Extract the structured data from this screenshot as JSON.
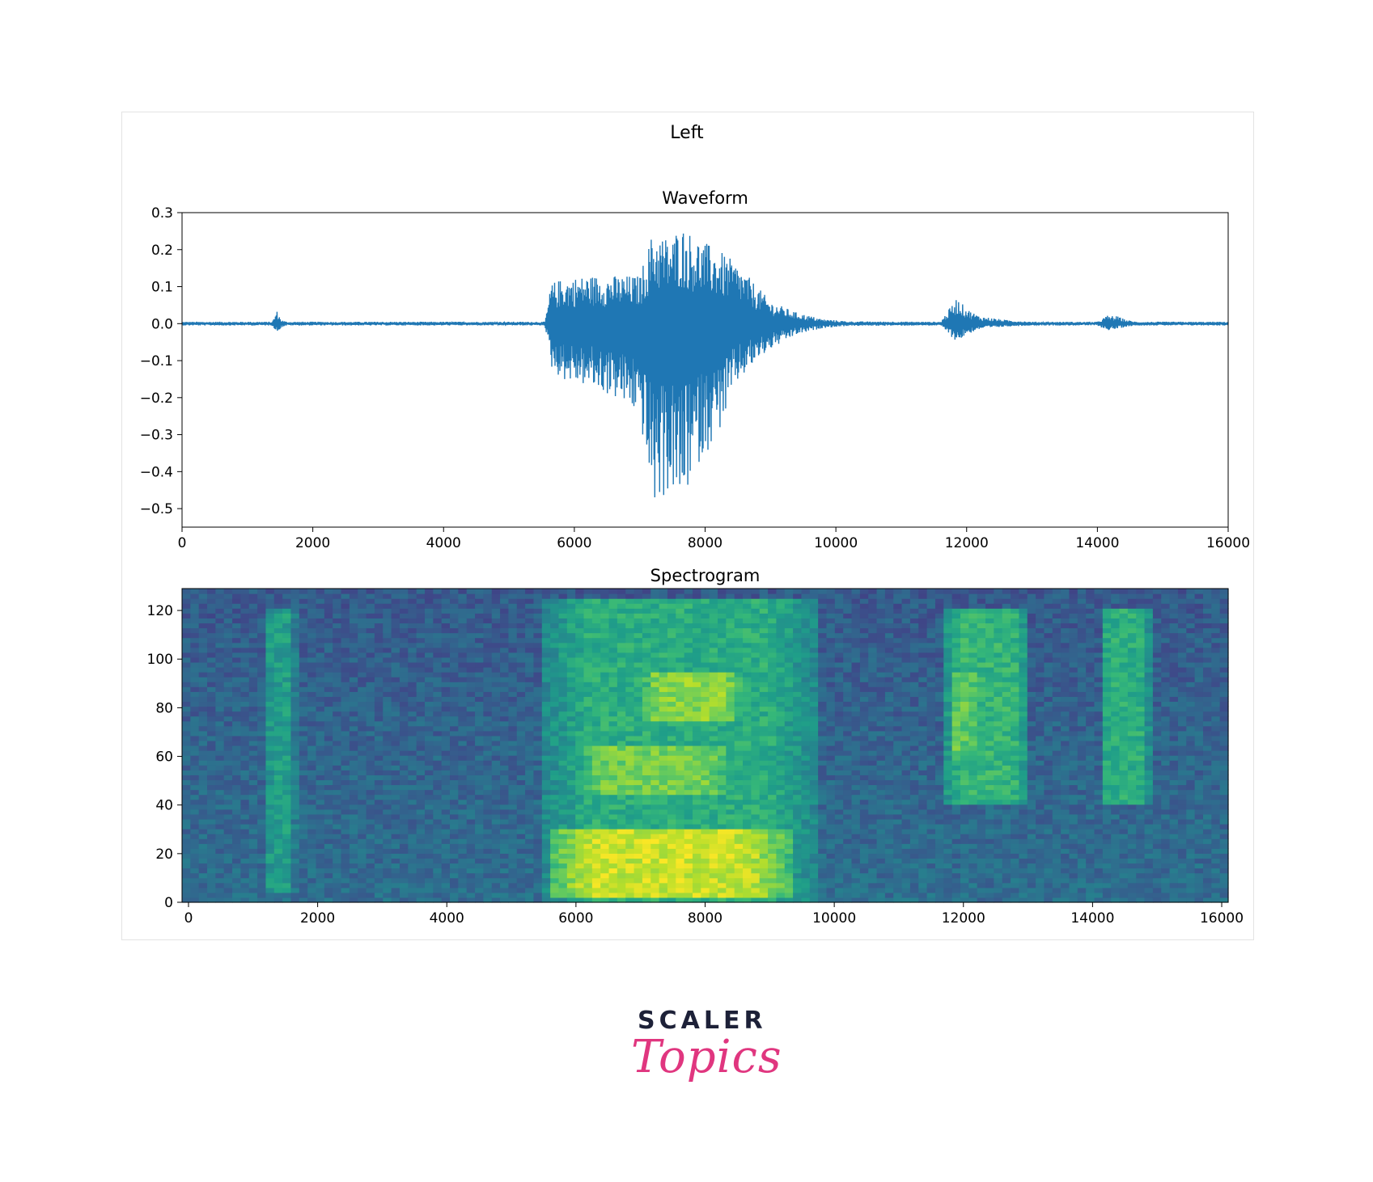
{
  "figure": {
    "suptitle": "Left"
  },
  "chart_data": [
    {
      "type": "line",
      "title": "Waveform",
      "xlabel": "",
      "ylabel": "",
      "xlim": [
        0,
        16000
      ],
      "ylim": [
        -0.55,
        0.3
      ],
      "xticks": [
        0,
        2000,
        4000,
        6000,
        8000,
        10000,
        12000,
        14000,
        16000
      ],
      "yticks": [
        0.3,
        0.2,
        0.1,
        0.0,
        -0.1,
        -0.2,
        -0.3,
        -0.4,
        -0.5
      ],
      "ytick_labels": [
        "0.3",
        "0.2",
        "0.1",
        "0.0",
        "−0.1",
        "−0.2",
        "−0.3",
        "−0.4",
        "−0.5"
      ],
      "color": "#1f77b4",
      "envelope": {
        "x": [
          0,
          1380,
          1450,
          1520,
          1600,
          5550,
          5650,
          5800,
          6200,
          6600,
          7000,
          7200,
          7500,
          7600,
          7900,
          8200,
          8500,
          8800,
          9000,
          9400,
          9800,
          10200,
          11600,
          11850,
          12000,
          12200,
          12600,
          13000,
          14000,
          14150,
          14300,
          14450,
          14600,
          16000
        ],
        "upper": [
          0.005,
          0.005,
          0.035,
          0.01,
          0.005,
          0.005,
          0.11,
          0.12,
          0.13,
          0.13,
          0.13,
          0.25,
          0.23,
          0.27,
          0.23,
          0.2,
          0.16,
          0.1,
          0.06,
          0.03,
          0.012,
          0.006,
          0.005,
          0.07,
          0.04,
          0.02,
          0.01,
          0.005,
          0.005,
          0.022,
          0.02,
          0.01,
          0.005,
          0.005
        ],
        "lower": [
          -0.005,
          -0.005,
          -0.025,
          -0.01,
          -0.005,
          -0.005,
          -0.12,
          -0.15,
          -0.17,
          -0.2,
          -0.25,
          -0.5,
          -0.45,
          -0.51,
          -0.38,
          -0.3,
          -0.16,
          -0.1,
          -0.07,
          -0.03,
          -0.012,
          -0.006,
          -0.005,
          -0.05,
          -0.03,
          -0.015,
          -0.008,
          -0.005,
          -0.005,
          -0.018,
          -0.015,
          -0.008,
          -0.005,
          -0.005
        ]
      }
    },
    {
      "type": "heatmap",
      "title": "Spectrogram",
      "xlabel": "",
      "ylabel": "",
      "xlim": [
        -100,
        16100
      ],
      "ylim": [
        0,
        129
      ],
      "xticks": [
        0,
        2000,
        4000,
        6000,
        8000,
        10000,
        12000,
        14000,
        16000
      ],
      "yticks": [
        0,
        20,
        40,
        60,
        80,
        100,
        120
      ],
      "colormap": "viridis",
      "energy_regions": [
        {
          "x": [
            1200,
            1650
          ],
          "y": [
            5,
            120
          ],
          "level": 0.55
        },
        {
          "x": [
            5500,
            9700
          ],
          "y": [
            0,
            125
          ],
          "level": 0.62
        },
        {
          "x": [
            5600,
            9300
          ],
          "y": [
            3,
            30
          ],
          "level": 0.92
        },
        {
          "x": [
            7000,
            8600
          ],
          "y": [
            75,
            95
          ],
          "level": 0.82
        },
        {
          "x": [
            6000,
            8500
          ],
          "y": [
            45,
            65
          ],
          "level": 0.78
        },
        {
          "x": [
            11700,
            13000
          ],
          "y": [
            40,
            120
          ],
          "level": 0.65
        },
        {
          "x": [
            11800,
            12200
          ],
          "y": [
            60,
            95
          ],
          "level": 0.75
        },
        {
          "x": [
            14100,
            14900
          ],
          "y": [
            40,
            120
          ],
          "level": 0.62
        }
      ]
    }
  ],
  "logo": {
    "line1": "SCALER",
    "line2": "Topics"
  }
}
